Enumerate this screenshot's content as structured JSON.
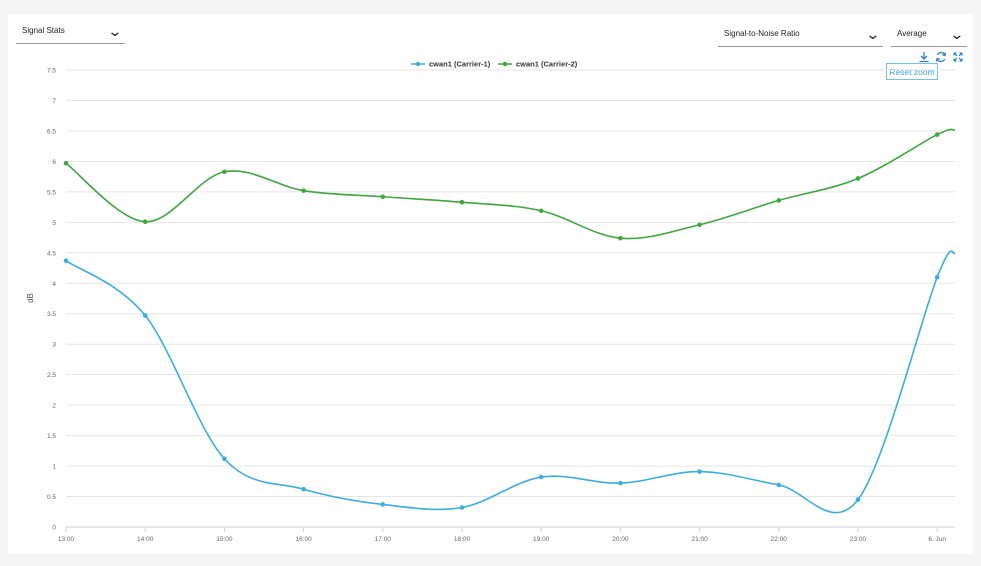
{
  "controls": {
    "view_select": "Signal Stats",
    "metric_select": "Signal-to-Noise Ratio",
    "aggregate_select": "Average",
    "reset_zoom": "Reset zoom"
  },
  "icons": [
    "download-icon",
    "refresh-icon",
    "expand-icon",
    "chevron-down-icon"
  ],
  "colors": {
    "series_1": "#3aaee3",
    "series_2": "#3ea83e",
    "accent": "#39a6e0"
  },
  "chart_data": {
    "type": "line",
    "ylabel": "dB",
    "ylim": [
      0,
      7.5
    ],
    "yticks": [
      "0",
      "0.5",
      "1",
      "1.5",
      "2",
      "2.5",
      "3",
      "3.5",
      "4",
      "4.5",
      "5",
      "5.5",
      "6",
      "6.5",
      "7",
      "7.5"
    ],
    "x": [
      "13:00",
      "14:00",
      "15:00",
      "16:00",
      "17:00",
      "18:00",
      "19:00",
      "20:00",
      "21:00",
      "22:00",
      "23:00",
      "6. Jun"
    ],
    "legend_position": "top-center",
    "series": [
      {
        "name": "cwan1 (Carrier-1)",
        "values": [
          4.37,
          3.47,
          1.12,
          0.62,
          0.37,
          0.32,
          0.82,
          0.72,
          0.91,
          0.69,
          0.45,
          4.1
        ],
        "end_value": 4.5
      },
      {
        "name": "cwan1 (Carrier-2)",
        "values": [
          5.97,
          5.01,
          5.83,
          5.52,
          5.42,
          5.33,
          5.19,
          4.74,
          4.96,
          5.36,
          5.72,
          6.44
        ],
        "end_value": 6.52
      }
    ]
  }
}
